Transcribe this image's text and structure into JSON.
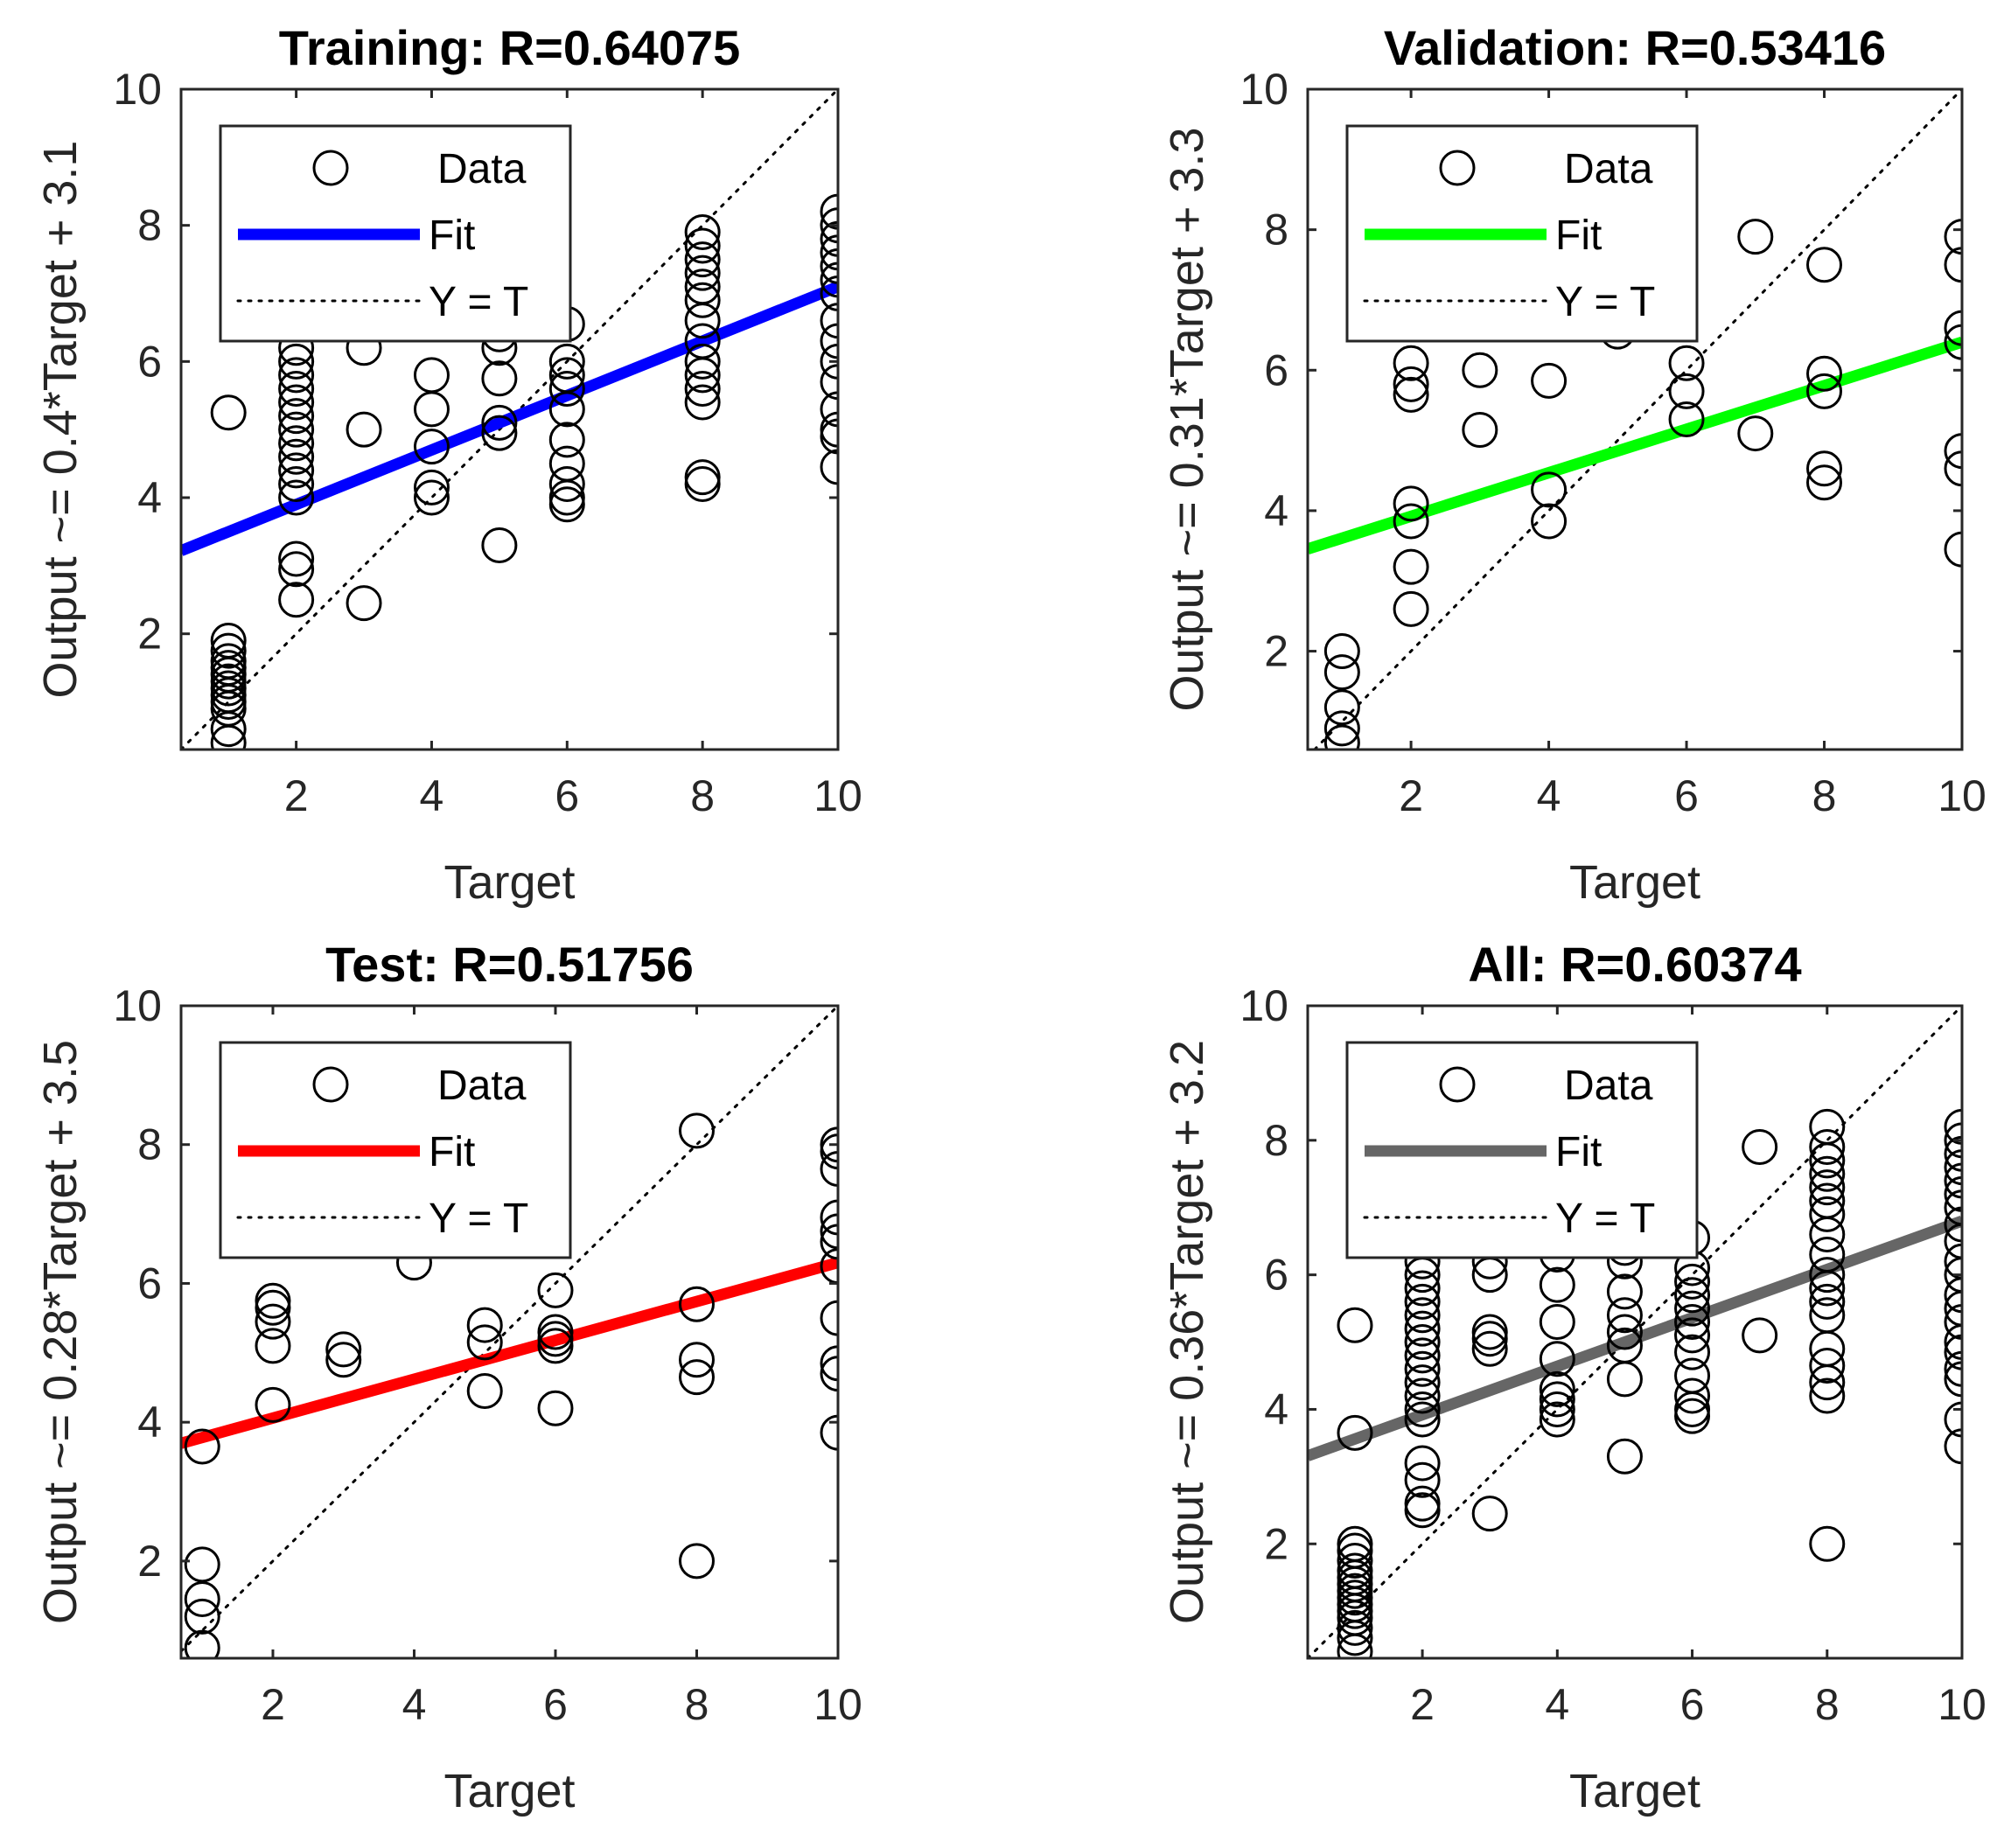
{
  "chart_data": [
    {
      "type": "scatter",
      "title": "Training: R=0.64075",
      "xlabel": "Target",
      "ylabel": "Output ~= 0.4*Target + 3.1",
      "xlim": [
        0.3,
        10
      ],
      "ylim": [
        0.3,
        10
      ],
      "xticks": [
        2,
        4,
        6,
        8,
        10
      ],
      "yticks": [
        2,
        4,
        6,
        8,
        10
      ],
      "legend": {
        "position": "top-left",
        "entries": [
          "Data",
          "Fit",
          "Y = T"
        ]
      },
      "fit": {
        "slope": 0.4,
        "intercept": 3.1,
        "color": "#0000ff"
      },
      "points": [
        [
          1,
          5.25
        ],
        [
          1,
          1.9
        ],
        [
          1,
          1.75
        ],
        [
          1,
          1.6
        ],
        [
          1,
          1.5
        ],
        [
          1,
          1.4
        ],
        [
          1,
          1.3
        ],
        [
          1,
          1.2
        ],
        [
          1,
          1.1
        ],
        [
          1,
          1.0
        ],
        [
          1,
          0.9
        ],
        [
          1,
          0.6
        ],
        [
          1,
          0.4
        ],
        [
          2,
          6.2
        ],
        [
          2,
          6.0
        ],
        [
          2,
          5.8
        ],
        [
          2,
          5.6
        ],
        [
          2,
          5.4
        ],
        [
          2,
          5.2
        ],
        [
          2,
          5.0
        ],
        [
          2,
          4.8
        ],
        [
          2,
          4.6
        ],
        [
          2,
          4.4
        ],
        [
          2,
          4.2
        ],
        [
          2,
          4.0
        ],
        [
          2,
          3.1
        ],
        [
          2,
          2.95
        ],
        [
          2,
          2.5
        ],
        [
          3,
          6.2
        ],
        [
          3,
          5.0
        ],
        [
          3,
          2.45
        ],
        [
          4,
          5.8
        ],
        [
          4,
          5.3
        ],
        [
          4,
          4.75
        ],
        [
          4,
          4.15
        ],
        [
          4,
          4.0
        ],
        [
          5,
          6.4
        ],
        [
          5,
          6.2
        ],
        [
          5,
          5.75
        ],
        [
          5,
          5.1
        ],
        [
          5,
          4.95
        ],
        [
          5,
          3.3
        ],
        [
          6,
          6.55
        ],
        [
          6,
          6.0
        ],
        [
          6,
          5.8
        ],
        [
          6,
          5.6
        ],
        [
          6,
          5.3
        ],
        [
          6,
          4.85
        ],
        [
          6,
          4.5
        ],
        [
          6,
          4.2
        ],
        [
          6,
          4.0
        ],
        [
          6,
          3.9
        ],
        [
          8,
          7.9
        ],
        [
          8,
          7.7
        ],
        [
          8,
          7.5
        ],
        [
          8,
          7.3
        ],
        [
          8,
          7.1
        ],
        [
          8,
          6.9
        ],
        [
          8,
          6.6
        ],
        [
          8,
          6.3
        ],
        [
          8,
          6.0
        ],
        [
          8,
          5.8
        ],
        [
          8,
          5.6
        ],
        [
          8,
          5.4
        ],
        [
          8,
          4.3
        ],
        [
          8,
          4.2
        ],
        [
          10,
          8.2
        ],
        [
          10,
          8.0
        ],
        [
          10,
          7.8
        ],
        [
          10,
          7.6
        ],
        [
          10,
          7.4
        ],
        [
          10,
          7.2
        ],
        [
          10,
          7.0
        ],
        [
          10,
          6.6
        ],
        [
          10,
          6.3
        ],
        [
          10,
          6.0
        ],
        [
          10,
          5.7
        ],
        [
          10,
          5.3
        ],
        [
          10,
          5.0
        ],
        [
          10,
          4.9
        ],
        [
          10,
          4.45
        ]
      ]
    },
    {
      "type": "scatter",
      "title": "Validation: R=0.53416",
      "xlabel": "Target",
      "ylabel": "Output ~= 0.31*Target + 3.3",
      "xlim": [
        0.5,
        10
      ],
      "ylim": [
        0.6,
        10
      ],
      "xticks": [
        2,
        4,
        6,
        8,
        10
      ],
      "yticks": [
        2,
        4,
        6,
        8,
        10
      ],
      "legend": {
        "position": "top-left",
        "entries": [
          "Data",
          "Fit",
          "Y = T"
        ]
      },
      "fit": {
        "slope": 0.31,
        "intercept": 3.3,
        "color": "#00ff00"
      },
      "points": [
        [
          1,
          2.0
        ],
        [
          1,
          1.7
        ],
        [
          1,
          1.2
        ],
        [
          1,
          0.9
        ],
        [
          1,
          0.7
        ],
        [
          2,
          6.1
        ],
        [
          2,
          5.8
        ],
        [
          2,
          5.65
        ],
        [
          2,
          4.1
        ],
        [
          2,
          3.85
        ],
        [
          2,
          3.2
        ],
        [
          2,
          2.6
        ],
        [
          3,
          6.0
        ],
        [
          3,
          5.15
        ],
        [
          4,
          5.85
        ],
        [
          4,
          4.3
        ],
        [
          4,
          3.85
        ],
        [
          5,
          6.55
        ],
        [
          6,
          6.1
        ],
        [
          6,
          5.7
        ],
        [
          6,
          5.3
        ],
        [
          7,
          7.9
        ],
        [
          7,
          5.1
        ],
        [
          8,
          7.5
        ],
        [
          8,
          5.95
        ],
        [
          8,
          5.7
        ],
        [
          8,
          4.6
        ],
        [
          8,
          4.4
        ],
        [
          10,
          7.9
        ],
        [
          10,
          7.5
        ],
        [
          10,
          6.6
        ],
        [
          10,
          6.4
        ],
        [
          10,
          4.85
        ],
        [
          10,
          4.6
        ],
        [
          10,
          3.45
        ]
      ]
    },
    {
      "type": "scatter",
      "title": "Test: R=0.51756",
      "xlabel": "Target",
      "ylabel": "Output ~= 0.28*Target + 3.5",
      "xlim": [
        0.7,
        10
      ],
      "ylim": [
        0.6,
        10
      ],
      "xticks": [
        2,
        4,
        6,
        8,
        10
      ],
      "yticks": [
        2,
        4,
        6,
        8,
        10
      ],
      "legend": {
        "position": "top-left",
        "entries": [
          "Data",
          "Fit",
          "Y = T"
        ]
      },
      "fit": {
        "slope": 0.28,
        "intercept": 3.5,
        "color": "#ff0000"
      },
      "points": [
        [
          1,
          3.65
        ],
        [
          1,
          1.95
        ],
        [
          1,
          1.45
        ],
        [
          1,
          1.2
        ],
        [
          1,
          0.75
        ],
        [
          2,
          5.75
        ],
        [
          2,
          5.65
        ],
        [
          2,
          5.45
        ],
        [
          2,
          5.1
        ],
        [
          2,
          4.25
        ],
        [
          3,
          5.05
        ],
        [
          3,
          4.9
        ],
        [
          4,
          6.3
        ],
        [
          5,
          5.4
        ],
        [
          5,
          5.15
        ],
        [
          5,
          4.45
        ],
        [
          6,
          5.9
        ],
        [
          6,
          5.3
        ],
        [
          6,
          5.2
        ],
        [
          6,
          5.1
        ],
        [
          6,
          4.2
        ],
        [
          8,
          8.2
        ],
        [
          8,
          5.7
        ],
        [
          8,
          4.9
        ],
        [
          8,
          4.65
        ],
        [
          8,
          2.0
        ],
        [
          10,
          8.0
        ],
        [
          10,
          7.9
        ],
        [
          10,
          7.65
        ],
        [
          10,
          6.95
        ],
        [
          10,
          6.75
        ],
        [
          10,
          6.6
        ],
        [
          10,
          6.25
        ],
        [
          10,
          5.5
        ],
        [
          10,
          4.85
        ],
        [
          10,
          4.7
        ],
        [
          10,
          3.85
        ]
      ]
    },
    {
      "type": "scatter",
      "title": "All: R=0.60374",
      "xlabel": "Target",
      "ylabel": "Output ~= 0.36*Target + 3.2",
      "xlim": [
        0.3,
        10
      ],
      "ylim": [
        0.3,
        10
      ],
      "xticks": [
        2,
        4,
        6,
        8,
        10
      ],
      "yticks": [
        2,
        4,
        6,
        8,
        10
      ],
      "legend": {
        "position": "top-left",
        "entries": [
          "Data",
          "Fit",
          "Y = T"
        ]
      },
      "fit": {
        "slope": 0.36,
        "intercept": 3.2,
        "color": "#666666"
      },
      "points": [
        [
          1,
          5.25
        ],
        [
          1,
          3.65
        ],
        [
          1,
          2.0
        ],
        [
          1,
          1.9
        ],
        [
          1,
          1.75
        ],
        [
          1,
          1.6
        ],
        [
          1,
          1.5
        ],
        [
          1,
          1.4
        ],
        [
          1,
          1.3
        ],
        [
          1,
          1.2
        ],
        [
          1,
          1.1
        ],
        [
          1,
          1.0
        ],
        [
          1,
          0.9
        ],
        [
          1,
          0.75
        ],
        [
          1,
          0.6
        ],
        [
          1,
          0.4
        ],
        [
          2,
          6.2
        ],
        [
          2,
          6.0
        ],
        [
          2,
          5.8
        ],
        [
          2,
          5.6
        ],
        [
          2,
          5.4
        ],
        [
          2,
          5.2
        ],
        [
          2,
          5.0
        ],
        [
          2,
          4.8
        ],
        [
          2,
          4.6
        ],
        [
          2,
          4.4
        ],
        [
          2,
          4.2
        ],
        [
          2,
          4.0
        ],
        [
          2,
          3.85
        ],
        [
          2,
          3.2
        ],
        [
          2,
          2.95
        ],
        [
          2,
          2.6
        ],
        [
          2,
          2.5
        ],
        [
          3,
          6.2
        ],
        [
          3,
          6.0
        ],
        [
          3,
          5.15
        ],
        [
          3,
          5.05
        ],
        [
          3,
          4.9
        ],
        [
          3,
          2.45
        ],
        [
          4,
          6.3
        ],
        [
          4,
          5.85
        ],
        [
          4,
          5.3
        ],
        [
          4,
          4.75
        ],
        [
          4,
          4.3
        ],
        [
          4,
          4.15
        ],
        [
          4,
          4.0
        ],
        [
          4,
          3.85
        ],
        [
          5,
          6.55
        ],
        [
          5,
          6.4
        ],
        [
          5,
          6.2
        ],
        [
          5,
          5.75
        ],
        [
          5,
          5.4
        ],
        [
          5,
          5.15
        ],
        [
          5,
          4.95
        ],
        [
          5,
          4.45
        ],
        [
          5,
          3.3
        ],
        [
          6,
          6.55
        ],
        [
          6,
          6.1
        ],
        [
          6,
          5.9
        ],
        [
          6,
          5.7
        ],
        [
          6,
          5.5
        ],
        [
          6,
          5.3
        ],
        [
          6,
          5.1
        ],
        [
          6,
          4.85
        ],
        [
          6,
          4.5
        ],
        [
          6,
          4.2
        ],
        [
          6,
          4.0
        ],
        [
          6,
          3.9
        ],
        [
          7,
          7.9
        ],
        [
          7,
          5.1
        ],
        [
          8,
          8.2
        ],
        [
          8,
          7.9
        ],
        [
          8,
          7.7
        ],
        [
          8,
          7.5
        ],
        [
          8,
          7.3
        ],
        [
          8,
          7.1
        ],
        [
          8,
          6.9
        ],
        [
          8,
          6.6
        ],
        [
          8,
          6.3
        ],
        [
          8,
          6.0
        ],
        [
          8,
          5.8
        ],
        [
          8,
          5.6
        ],
        [
          8,
          5.4
        ],
        [
          8,
          4.9
        ],
        [
          8,
          4.65
        ],
        [
          8,
          4.4
        ],
        [
          8,
          4.2
        ],
        [
          8,
          2.0
        ],
        [
          10,
          8.2
        ],
        [
          10,
          8.0
        ],
        [
          10,
          7.8
        ],
        [
          10,
          7.6
        ],
        [
          10,
          7.4
        ],
        [
          10,
          7.2
        ],
        [
          10,
          7.0
        ],
        [
          10,
          6.75
        ],
        [
          10,
          6.5
        ],
        [
          10,
          6.2
        ],
        [
          10,
          6.0
        ],
        [
          10,
          5.7
        ],
        [
          10,
          5.5
        ],
        [
          10,
          5.3
        ],
        [
          10,
          5.0
        ],
        [
          10,
          4.85
        ],
        [
          10,
          4.6
        ],
        [
          10,
          4.45
        ],
        [
          10,
          3.85
        ],
        [
          10,
          3.45
        ]
      ]
    }
  ]
}
